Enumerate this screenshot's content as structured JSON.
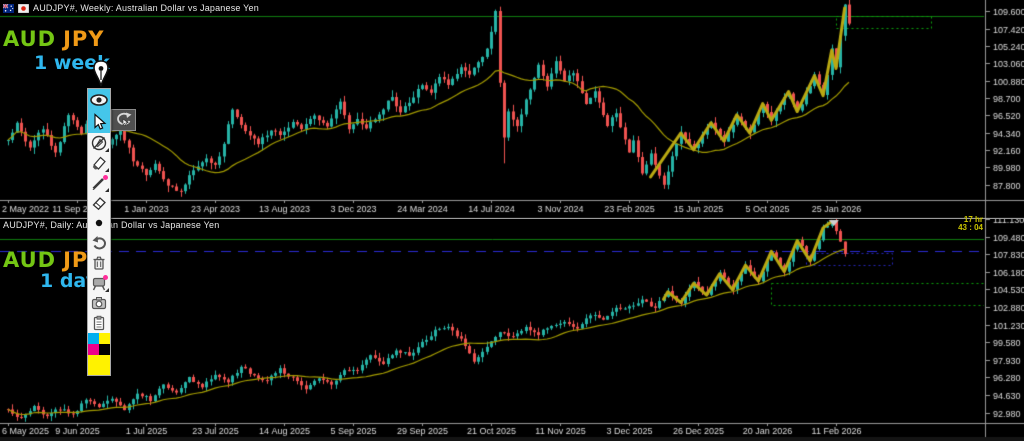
{
  "windows": {
    "weekly": {
      "title": "AUDJPY#, Weekly:  Australian Dollar vs Japanese Yen",
      "overlay": {
        "base": "AUD",
        "quote": "JPY",
        "timeframe": "1 week"
      }
    },
    "daily": {
      "title": "AUDJPY#, Daily:  Australian Dollar vs Japanese Yen",
      "overlay": {
        "base": "AUD",
        "quote": "JPY",
        "timeframe": "1 day"
      },
      "candle_timer": {
        "line1": "17 hr",
        "line2": "43 : 04"
      }
    }
  },
  "colors": {
    "bull": "#26b3a6",
    "bear": "#ef5350",
    "ma": "#a39b00",
    "zigzag": "#b9a812",
    "hline_green": "#0f7d0f",
    "rect_green": "#0ca10c",
    "dashed_blue": "#2b2bd4",
    "rect_blue": "#2525bb",
    "axis_text": "#dcdcdc",
    "border": "#9a9a9a",
    "separator": "#b0b0b0",
    "timer": "#c9c400",
    "overlay_base": "#74c614",
    "overlay_quote": "#f09a17",
    "overlay_tf": "#2fb7ee"
  },
  "toolbar": {
    "tools": [
      "eye",
      "cursor",
      "pen-off",
      "highlighter",
      "pen",
      "eraser",
      "dot",
      "undo",
      "trash",
      "whiteboard",
      "camera",
      "clipboard"
    ],
    "selected": [
      "eye",
      "cursor"
    ],
    "swatches": [
      "#00AEEF",
      "#FFF200",
      "#EC008C",
      "#000000"
    ],
    "active_color": "#FFF200"
  },
  "chart_data": [
    {
      "type": "candlestick",
      "title": "AUDJPY#, Weekly: Australian Dollar vs Japanese Yen",
      "pair": "AUD/JPY",
      "timeframe": "W1",
      "x_ticks": [
        "2 May 2022",
        "11 Sep 2022",
        "1 Jan 2023",
        "23 Apr 2023",
        "13 Aug 2023",
        "3 Dec 2023",
        "24 Mar 2024",
        "14 Jul 2024",
        "3 Nov 2024",
        "23 Feb 2025",
        "15 Jun 2025",
        "5 Oct 2025",
        "25 Jan 2026"
      ],
      "y_ticks": [
        "109.600",
        "107.420",
        "105.240",
        "103.060",
        "100.880",
        "98.700",
        "96.520",
        "94.340",
        "92.160",
        "89.980",
        "87.800"
      ],
      "ylim": [
        85.9,
        111.0
      ],
      "grid": false,
      "ma_period": 20,
      "seed": 7,
      "noise": 0.5,
      "wick": 0.85,
      "swing_points": [
        [
          0,
          93.4
        ],
        [
          2,
          95.6
        ],
        [
          5,
          92.4
        ],
        [
          8,
          95.0
        ],
        [
          11,
          91.8
        ],
        [
          14,
          96.6
        ],
        [
          17,
          94.2
        ],
        [
          20,
          97.9
        ],
        [
          23,
          93.0
        ],
        [
          26,
          94.8
        ],
        [
          29,
          91.0
        ],
        [
          32,
          89.0
        ],
        [
          34,
          90.6
        ],
        [
          37,
          87.6
        ],
        [
          40,
          87.0
        ],
        [
          43,
          89.8
        ],
        [
          46,
          91.2
        ],
        [
          48,
          90.2
        ],
        [
          50,
          93.0
        ],
        [
          52,
          97.4
        ],
        [
          53,
          96.2
        ],
        [
          56,
          94.0
        ],
        [
          58,
          92.9
        ],
        [
          61,
          94.8
        ],
        [
          63,
          94.0
        ],
        [
          66,
          95.8
        ],
        [
          68,
          95.0
        ],
        [
          71,
          96.5
        ],
        [
          74,
          95.2
        ],
        [
          77,
          98.2
        ],
        [
          79,
          94.6
        ],
        [
          81,
          96.0
        ],
        [
          83,
          95.0
        ],
        [
          86,
          96.8
        ],
        [
          89,
          98.8
        ],
        [
          91,
          97.0
        ],
        [
          94,
          99.0
        ],
        [
          96,
          100.2
        ],
        [
          98,
          99.5
        ],
        [
          100,
          101.5
        ],
        [
          102,
          100.2
        ],
        [
          105,
          102.6
        ],
        [
          107,
          101.4
        ],
        [
          109,
          103.2
        ],
        [
          111,
          104.8
        ],
        [
          113,
          109.4
        ],
        [
          114,
          100.5
        ],
        [
          115,
          93.8
        ],
        [
          116,
          97.0
        ],
        [
          118,
          95.2
        ],
        [
          121,
          99.8
        ],
        [
          123,
          103.0
        ],
        [
          125,
          100.0
        ],
        [
          127,
          103.3
        ],
        [
          129,
          100.8
        ],
        [
          131,
          102.0
        ],
        [
          134,
          97.8
        ],
        [
          136,
          99.5
        ],
        [
          139,
          95.4
        ],
        [
          141,
          97.0
        ],
        [
          144,
          91.8
        ],
        [
          145,
          93.6
        ],
        [
          147,
          89.0
        ],
        [
          149,
          91.6
        ],
        [
          152,
          88.0
        ],
        [
          156,
          94.3
        ],
        [
          159,
          92.2
        ],
        [
          163,
          95.6
        ],
        [
          166,
          93.3
        ],
        [
          169,
          96.6
        ],
        [
          172,
          94.3
        ],
        [
          175,
          98.0
        ],
        [
          177,
          95.9
        ],
        [
          181,
          99.5
        ],
        [
          183,
          97.0
        ],
        [
          187,
          101.5
        ],
        [
          189,
          99.0
        ],
        [
          191,
          104.7
        ],
        [
          192,
          102.4
        ],
        [
          194,
          110.2
        ],
        [
          195,
          107.9
        ]
      ],
      "spikes": [
        {
          "t": 40,
          "low": 86.3
        },
        {
          "t": 113,
          "high": 109.8
        },
        {
          "t": 115,
          "low": 90.5
        },
        {
          "t": 152,
          "low": 87.3
        },
        {
          "t": 194,
          "high": 110.5
        }
      ],
      "zigzag": [
        [
          149,
          88.8
        ],
        [
          156,
          94.3
        ],
        [
          159,
          92.2
        ],
        [
          163,
          95.6
        ],
        [
          166,
          93.3
        ],
        [
          169,
          96.6
        ],
        [
          172,
          94.3
        ],
        [
          175,
          98.0
        ],
        [
          177,
          95.9
        ],
        [
          181,
          99.5
        ],
        [
          183,
          97.0
        ],
        [
          187,
          101.5
        ],
        [
          189,
          99.0
        ],
        [
          191,
          104.7
        ],
        [
          192,
          102.4
        ],
        [
          194,
          110.0
        ]
      ],
      "annotations": {
        "hlines": [
          {
            "price": 109.05,
            "color": "green",
            "style": "solid"
          }
        ],
        "rects": [
          {
            "t1": 192,
            "t2": 214,
            "p1": 109.0,
            "p2": 107.55,
            "color": "green"
          }
        ]
      }
    },
    {
      "type": "candlestick",
      "title": "AUDJPY#, Daily: Australian Dollar vs Japanese Yen",
      "pair": "AUD/JPY",
      "timeframe": "D1",
      "x_ticks": [
        "6 May 2025",
        "9 Jun 2025",
        "1 Jul 2025",
        "23 Jul 2025",
        "14 Aug 2025",
        "5 Sep 2025",
        "29 Sep 2025",
        "21 Oct 2025",
        "11 Nov 2025",
        "3 Dec 2025",
        "26 Dec 2025",
        "20 Jan 2026",
        "11 Feb 2026"
      ],
      "y_ticks": [
        "111.130",
        "109.480",
        "107.830",
        "106.180",
        "104.530",
        "102.880",
        "101.230",
        "99.580",
        "97.930",
        "96.280",
        "94.630",
        "92.980"
      ],
      "ylim": [
        92.0,
        111.13
      ],
      "grid": false,
      "ma_period": 20,
      "seed": 3,
      "noise": 0.3,
      "wick": 0.5,
      "swing_points": [
        [
          0,
          93.3
        ],
        [
          3,
          92.4
        ],
        [
          6,
          93.6
        ],
        [
          9,
          92.6
        ],
        [
          12,
          93.4
        ],
        [
          15,
          92.8
        ],
        [
          18,
          94.2
        ],
        [
          21,
          93.5
        ],
        [
          24,
          94.4
        ],
        [
          27,
          93.3
        ],
        [
          30,
          94.8
        ],
        [
          33,
          94.2
        ],
        [
          36,
          95.6
        ],
        [
          39,
          94.9
        ],
        [
          42,
          96.2
        ],
        [
          45,
          95.4
        ],
        [
          48,
          96.6
        ],
        [
          51,
          95.9
        ],
        [
          54,
          97.3
        ],
        [
          57,
          96.4
        ],
        [
          60,
          96.0
        ],
        [
          63,
          97.0
        ],
        [
          66,
          96.2
        ],
        [
          69,
          95.3
        ],
        [
          72,
          96.3
        ],
        [
          75,
          95.6
        ],
        [
          78,
          97.0
        ],
        [
          81,
          96.9
        ],
        [
          84,
          98.3
        ],
        [
          87,
          97.6
        ],
        [
          90,
          98.9
        ],
        [
          93,
          98.3
        ],
        [
          96,
          99.6
        ],
        [
          99,
          100.6
        ],
        [
          102,
          101.1
        ],
        [
          105,
          99.8
        ],
        [
          108,
          97.8
        ],
        [
          111,
          99.0
        ],
        [
          114,
          100.6
        ],
        [
          117,
          100.0
        ],
        [
          120,
          101.0
        ],
        [
          123,
          100.3
        ],
        [
          126,
          101.2
        ],
        [
          129,
          101.4
        ],
        [
          132,
          100.8
        ],
        [
          135,
          102.2
        ],
        [
          138,
          101.6
        ],
        [
          141,
          102.8
        ],
        [
          144,
          102.9
        ],
        [
          147,
          103.6
        ],
        [
          150,
          102.8
        ],
        [
          153,
          104.3
        ],
        [
          156,
          103.3
        ],
        [
          159,
          105.1
        ],
        [
          162,
          104.0
        ],
        [
          165,
          106.0
        ],
        [
          168,
          104.5
        ],
        [
          171,
          106.8
        ],
        [
          174,
          105.3
        ],
        [
          177,
          108.1
        ],
        [
          180,
          106.2
        ],
        [
          183,
          109.1
        ],
        [
          186,
          107.2
        ],
        [
          189,
          110.3
        ],
        [
          191,
          110.9
        ],
        [
          194,
          108.0
        ]
      ],
      "spikes": [
        {
          "t": 189,
          "high": 110.6
        },
        {
          "t": 191,
          "high": 111.0
        },
        {
          "t": 194,
          "low": 107.6
        }
      ],
      "zigzag": [
        [
          152,
          103.6
        ],
        [
          153,
          104.3
        ],
        [
          156,
          103.3
        ],
        [
          159,
          105.1
        ],
        [
          162,
          104.0
        ],
        [
          165,
          106.0
        ],
        [
          168,
          104.5
        ],
        [
          171,
          106.8
        ],
        [
          174,
          105.3
        ],
        [
          177,
          108.1
        ],
        [
          180,
          106.2
        ],
        [
          183,
          109.1
        ],
        [
          186,
          107.2
        ],
        [
          189,
          110.3
        ],
        [
          191,
          110.9
        ]
      ],
      "annotations": {
        "hlines": [
          {
            "price": 109.25,
            "color": "green",
            "style": "solid"
          },
          {
            "price": 108.1,
            "color": "blue",
            "style": "dashed"
          }
        ],
        "rects": [
          {
            "t1": 185,
            "t2": 205,
            "p1": 107.95,
            "p2": 106.85,
            "color": "blue"
          },
          {
            "t1": 177,
            "t2": 227,
            "p1": 105.15,
            "p2": 103.1,
            "color": "green"
          }
        ],
        "shift_marker_t": 191.5
      }
    }
  ]
}
